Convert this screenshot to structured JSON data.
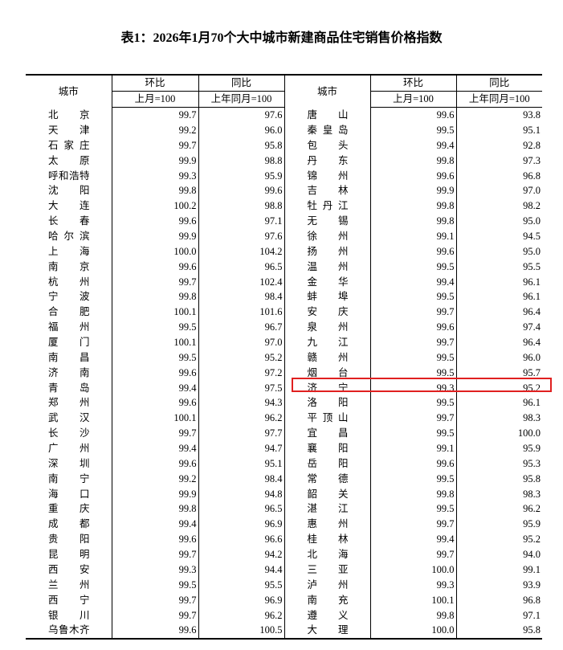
{
  "title": "表1：2026年1月70个大中城市新建商品住宅销售价格指数",
  "header": {
    "city": "城市",
    "mom": "环比",
    "mom_base": "上月=100",
    "yoy": "同比",
    "yoy_base": "上年同月=100"
  },
  "highlight_color": "#e02020",
  "highlighted_city": "济宁",
  "rows": [
    {
      "left": {
        "city": "北京",
        "mom": "99.7",
        "yoy": "97.6"
      },
      "right": {
        "city": "唐山",
        "mom": "99.6",
        "yoy": "93.8"
      }
    },
    {
      "left": {
        "city": "天津",
        "mom": "99.2",
        "yoy": "96.0"
      },
      "right": {
        "city": "秦皇岛",
        "mom": "99.5",
        "yoy": "95.1"
      }
    },
    {
      "left": {
        "city": "石家庄",
        "mom": "99.7",
        "yoy": "95.8"
      },
      "right": {
        "city": "包头",
        "mom": "99.4",
        "yoy": "92.8"
      }
    },
    {
      "left": {
        "city": "太原",
        "mom": "99.9",
        "yoy": "98.8"
      },
      "right": {
        "city": "丹东",
        "mom": "99.8",
        "yoy": "97.3"
      }
    },
    {
      "left": {
        "city": "呼和浩特",
        "mom": "99.3",
        "yoy": "95.9"
      },
      "right": {
        "city": "锦州",
        "mom": "99.6",
        "yoy": "96.8"
      }
    },
    {
      "left": {
        "city": "沈阳",
        "mom": "99.8",
        "yoy": "99.6"
      },
      "right": {
        "city": "吉林",
        "mom": "99.9",
        "yoy": "97.0"
      }
    },
    {
      "left": {
        "city": "大连",
        "mom": "100.2",
        "yoy": "98.8"
      },
      "right": {
        "city": "牡丹江",
        "mom": "99.8",
        "yoy": "98.2"
      }
    },
    {
      "left": {
        "city": "长春",
        "mom": "99.6",
        "yoy": "97.1"
      },
      "right": {
        "city": "无锡",
        "mom": "99.8",
        "yoy": "95.0"
      }
    },
    {
      "left": {
        "city": "哈尔滨",
        "mom": "99.9",
        "yoy": "97.6"
      },
      "right": {
        "city": "徐州",
        "mom": "99.1",
        "yoy": "94.5"
      }
    },
    {
      "left": {
        "city": "上海",
        "mom": "100.0",
        "yoy": "104.2"
      },
      "right": {
        "city": "扬州",
        "mom": "99.6",
        "yoy": "95.0"
      }
    },
    {
      "left": {
        "city": "南京",
        "mom": "99.6",
        "yoy": "96.5"
      },
      "right": {
        "city": "温州",
        "mom": "99.5",
        "yoy": "95.5"
      }
    },
    {
      "left": {
        "city": "杭州",
        "mom": "99.7",
        "yoy": "102.4"
      },
      "right": {
        "city": "金华",
        "mom": "99.4",
        "yoy": "96.1"
      }
    },
    {
      "left": {
        "city": "宁波",
        "mom": "99.8",
        "yoy": "98.4"
      },
      "right": {
        "city": "蚌埠",
        "mom": "99.5",
        "yoy": "96.1"
      }
    },
    {
      "left": {
        "city": "合肥",
        "mom": "100.1",
        "yoy": "101.6"
      },
      "right": {
        "city": "安庆",
        "mom": "99.7",
        "yoy": "96.4"
      }
    },
    {
      "left": {
        "city": "福州",
        "mom": "99.5",
        "yoy": "96.7"
      },
      "right": {
        "city": "泉州",
        "mom": "99.6",
        "yoy": "97.4"
      }
    },
    {
      "left": {
        "city": "厦门",
        "mom": "100.1",
        "yoy": "97.0"
      },
      "right": {
        "city": "九江",
        "mom": "99.7",
        "yoy": "96.4"
      }
    },
    {
      "left": {
        "city": "南昌",
        "mom": "99.5",
        "yoy": "95.2"
      },
      "right": {
        "city": "赣州",
        "mom": "99.5",
        "yoy": "96.0"
      }
    },
    {
      "left": {
        "city": "济南",
        "mom": "99.6",
        "yoy": "97.2"
      },
      "right": {
        "city": "烟台",
        "mom": "99.5",
        "yoy": "95.7"
      }
    },
    {
      "left": {
        "city": "青岛",
        "mom": "99.4",
        "yoy": "97.5"
      },
      "right": {
        "city": "济宁",
        "mom": "99.3",
        "yoy": "95.2"
      }
    },
    {
      "left": {
        "city": "郑州",
        "mom": "99.6",
        "yoy": "94.3"
      },
      "right": {
        "city": "洛阳",
        "mom": "99.5",
        "yoy": "96.1"
      }
    },
    {
      "left": {
        "city": "武汉",
        "mom": "100.1",
        "yoy": "96.2"
      },
      "right": {
        "city": "平顶山",
        "mom": "99.7",
        "yoy": "98.3"
      }
    },
    {
      "left": {
        "city": "长沙",
        "mom": "99.7",
        "yoy": "97.7"
      },
      "right": {
        "city": "宜昌",
        "mom": "99.5",
        "yoy": "100.0"
      }
    },
    {
      "left": {
        "city": "广州",
        "mom": "99.4",
        "yoy": "94.7"
      },
      "right": {
        "city": "襄阳",
        "mom": "99.1",
        "yoy": "95.9"
      }
    },
    {
      "left": {
        "city": "深圳",
        "mom": "99.6",
        "yoy": "95.1"
      },
      "right": {
        "city": "岳阳",
        "mom": "99.6",
        "yoy": "95.3"
      }
    },
    {
      "left": {
        "city": "南宁",
        "mom": "99.2",
        "yoy": "98.4"
      },
      "right": {
        "city": "常德",
        "mom": "99.5",
        "yoy": "95.8"
      }
    },
    {
      "left": {
        "city": "海口",
        "mom": "99.9",
        "yoy": "94.8"
      },
      "right": {
        "city": "韶关",
        "mom": "99.8",
        "yoy": "98.3"
      }
    },
    {
      "left": {
        "city": "重庆",
        "mom": "99.8",
        "yoy": "96.5"
      },
      "right": {
        "city": "湛江",
        "mom": "99.5",
        "yoy": "96.2"
      }
    },
    {
      "left": {
        "city": "成都",
        "mom": "99.4",
        "yoy": "96.9"
      },
      "right": {
        "city": "惠州",
        "mom": "99.7",
        "yoy": "95.9"
      }
    },
    {
      "left": {
        "city": "贵阳",
        "mom": "99.6",
        "yoy": "96.6"
      },
      "right": {
        "city": "桂林",
        "mom": "99.4",
        "yoy": "95.2"
      }
    },
    {
      "left": {
        "city": "昆明",
        "mom": "99.7",
        "yoy": "94.2"
      },
      "right": {
        "city": "北海",
        "mom": "99.7",
        "yoy": "94.0"
      }
    },
    {
      "left": {
        "city": "西安",
        "mom": "99.3",
        "yoy": "94.4"
      },
      "right": {
        "city": "三亚",
        "mom": "100.0",
        "yoy": "99.1"
      }
    },
    {
      "left": {
        "city": "兰州",
        "mom": "99.5",
        "yoy": "95.5"
      },
      "right": {
        "city": "泸州",
        "mom": "99.3",
        "yoy": "93.9"
      }
    },
    {
      "left": {
        "city": "西宁",
        "mom": "99.7",
        "yoy": "96.9"
      },
      "right": {
        "city": "南充",
        "mom": "100.1",
        "yoy": "96.8"
      }
    },
    {
      "left": {
        "city": "银川",
        "mom": "99.7",
        "yoy": "96.2"
      },
      "right": {
        "city": "遵义",
        "mom": "99.8",
        "yoy": "97.1"
      }
    },
    {
      "left": {
        "city": "乌鲁木齐",
        "mom": "99.6",
        "yoy": "100.5"
      },
      "right": {
        "city": "大理",
        "mom": "100.0",
        "yoy": "95.8"
      }
    }
  ]
}
